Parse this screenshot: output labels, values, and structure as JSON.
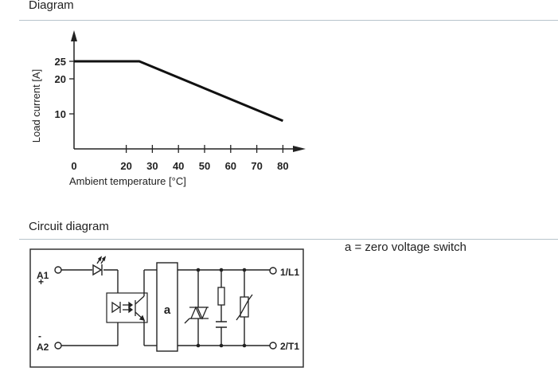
{
  "sections": {
    "diagram_title": "Diagram",
    "circuit_title": "Circuit diagram"
  },
  "chart_data": {
    "type": "line",
    "title": "",
    "xlabel": "Ambient temperature [°C]",
    "ylabel": "Load current [A]",
    "x_ticks": [
      0,
      20,
      30,
      40,
      50,
      60,
      70,
      80
    ],
    "y_ticks": [
      10,
      20,
      25
    ],
    "series": [
      {
        "x": [
          0,
          25,
          80
        ],
        "y": [
          25,
          25,
          8
        ]
      }
    ],
    "grid": false
  },
  "circuit": {
    "note": "a = zero voltage switch",
    "block_label": "a",
    "terminals": {
      "a1": "A1",
      "plus": "+",
      "minus": "-",
      "a2": "A2",
      "l1": "1/L1",
      "t1": "2/T1"
    }
  }
}
